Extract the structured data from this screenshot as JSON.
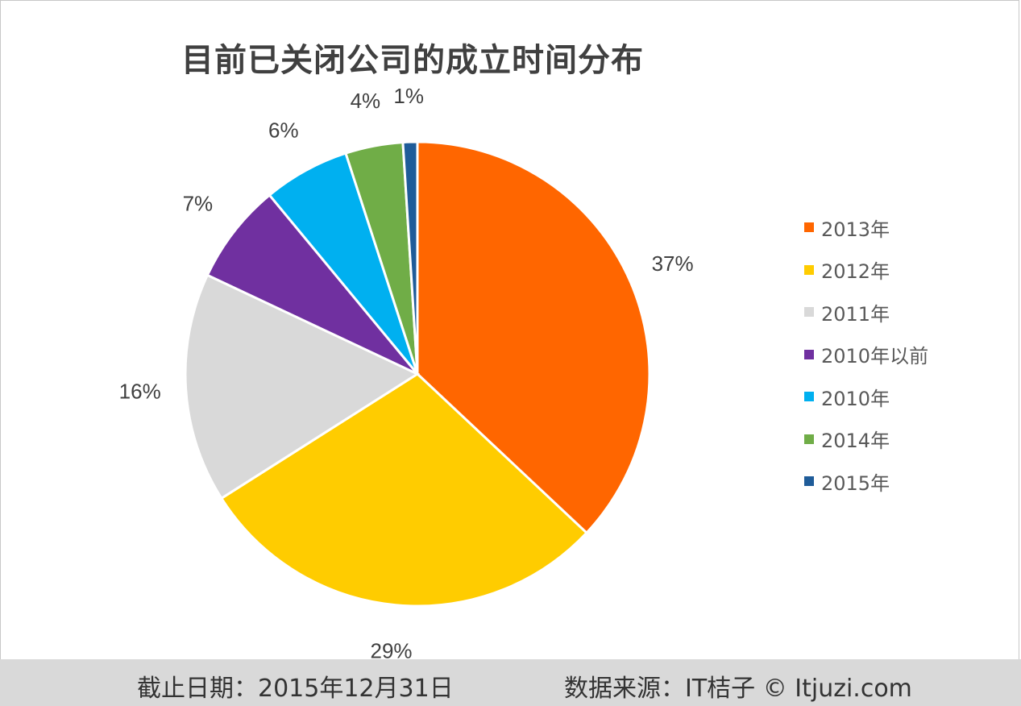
{
  "chart_data": {
    "type": "pie",
    "title": "目前已关闭公司的成立时间分布",
    "slices": [
      {
        "label": "2013年",
        "value": 37,
        "display": "37%",
        "color": "#ff6600"
      },
      {
        "label": "2012年",
        "value": 29,
        "display": "29%",
        "color": "#ffcc00"
      },
      {
        "label": "2011年",
        "value": 16,
        "display": "16%",
        "color": "#d9d9d9"
      },
      {
        "label": "2010年以前",
        "value": 7,
        "display": "7%",
        "color": "#7030a0"
      },
      {
        "label": "2010年",
        "value": 6,
        "display": "6%",
        "color": "#00b0f0"
      },
      {
        "label": "2014年",
        "value": 4,
        "display": "4%",
        "color": "#70ad47"
      },
      {
        "label": "2015年",
        "value": 1,
        "display": "1%",
        "color": "#1f5c99"
      }
    ],
    "legend_position": "right"
  },
  "footer": {
    "cutoff": "截止日期：2015年12月31日",
    "source": "数据来源：IT桔子 © Itjuzi.com"
  }
}
